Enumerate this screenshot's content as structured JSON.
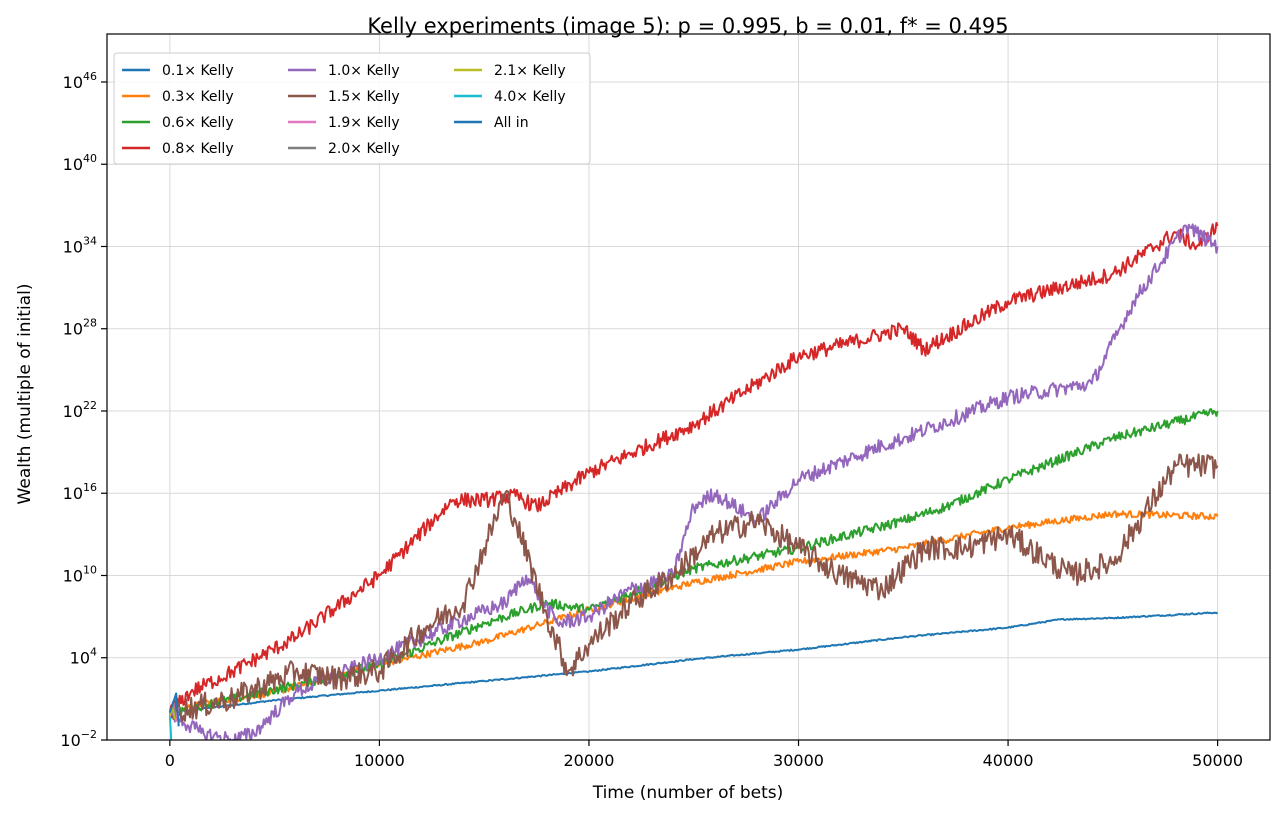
{
  "chart_data": {
    "type": "line",
    "title": "Kelly experiments (image 5): p = 0.995, b = 0.01, f* = 0.495",
    "xlabel": "Time (number of bets)",
    "ylabel": "Wealth (multiple of initial)",
    "xlim": [
      -3000,
      52500
    ],
    "ylim_log10": [
      -2,
      49.5
    ],
    "y_scale": "log",
    "grid": true,
    "legend_placement": "top-left",
    "legend_columns": 3,
    "x_ticks": [
      {
        "value": 0,
        "label": "0"
      },
      {
        "value": 10000,
        "label": "10000"
      },
      {
        "value": 20000,
        "label": "20000"
      },
      {
        "value": 30000,
        "label": "30000"
      },
      {
        "value": 40000,
        "label": "40000"
      },
      {
        "value": 50000,
        "label": "50000"
      }
    ],
    "y_ticks": [
      {
        "exp": -2,
        "base": "10",
        "sup": "−2"
      },
      {
        "exp": 4,
        "base": "10",
        "sup": "4"
      },
      {
        "exp": 10,
        "base": "10",
        "sup": "10"
      },
      {
        "exp": 16,
        "base": "10",
        "sup": "16"
      },
      {
        "exp": 22,
        "base": "10",
        "sup": "22"
      },
      {
        "exp": 28,
        "base": "10",
        "sup": "28"
      },
      {
        "exp": 34,
        "base": "10",
        "sup": "34"
      },
      {
        "exp": 40,
        "base": "10",
        "sup": "40"
      },
      {
        "exp": 46,
        "base": "10",
        "sup": "46"
      }
    ],
    "series": [
      {
        "name": "0.1× Kelly",
        "color": "#1f77b4",
        "jitter": 0.05,
        "x": [
          0,
          5000,
          10000,
          15000,
          20000,
          25000,
          30000,
          35000,
          40000,
          42500,
          45000,
          50000
        ],
        "log10_y": [
          0,
          0.9,
          1.6,
          2.3,
          3.0,
          3.9,
          4.6,
          5.5,
          6.2,
          6.8,
          6.9,
          7.3
        ]
      },
      {
        "name": "0.3× Kelly",
        "color": "#ff7f0e",
        "jitter": 0.25,
        "x": [
          0,
          2000,
          5000,
          10000,
          15000,
          20000,
          25000,
          30000,
          35000,
          40000,
          45000,
          50000
        ],
        "log10_y": [
          0,
          0.8,
          1.5,
          3.5,
          5.2,
          7.5,
          9.5,
          11,
          12,
          13.5,
          14.5,
          14.3
        ]
      },
      {
        "name": "0.6× Kelly",
        "color": "#2ca02c",
        "jitter": 0.35,
        "x": [
          0,
          3000,
          6000,
          10000,
          15000,
          18000,
          20000,
          25000,
          30000,
          35000,
          37000,
          40000,
          45000,
          50000
        ],
        "log10_y": [
          0,
          1,
          2,
          3.5,
          6.5,
          8,
          7.5,
          10.5,
          12,
          14,
          15,
          17,
          20,
          22
        ]
      },
      {
        "name": "0.8× Kelly",
        "color": "#d62728",
        "jitter": 0.55,
        "x": [
          0,
          1000,
          3000,
          6000,
          10000,
          13500,
          15000,
          16500,
          17500,
          20000,
          25000,
          30000,
          35000,
          36000,
          40000,
          45000,
          48000,
          49000,
          50000
        ],
        "log10_y": [
          0,
          1.5,
          3,
          5.5,
          10,
          15.5,
          15.5,
          15.8,
          15,
          17.5,
          21,
          26,
          28,
          26.5,
          30,
          32,
          35,
          34,
          35.5
        ]
      },
      {
        "name": "1.0× Kelly",
        "color": "#9467bd",
        "jitter": 0.55,
        "x": [
          0,
          1500,
          3000,
          4000,
          6000,
          10000,
          14000,
          16000,
          17000,
          17500,
          18500,
          20000,
          22000,
          24000,
          25000,
          26000,
          28000,
          30000,
          34000,
          35000,
          40000,
          44000,
          46000,
          48500,
          49000,
          50000
        ],
        "log10_y": [
          0,
          -1.5,
          -2,
          -1.5,
          1.5,
          4,
          6.8,
          8,
          10,
          8.8,
          6.5,
          7,
          9,
          10,
          15,
          16,
          14,
          17,
          19.5,
          20,
          23,
          24,
          30,
          35.5,
          35,
          34
        ]
      },
      {
        "name": "1.5× Kelly",
        "color": "#8c564b",
        "jitter": 0.9,
        "x": [
          0,
          3000,
          6000,
          8000,
          10000,
          12000,
          14000,
          15000,
          16000,
          16500,
          18000,
          19000,
          20000,
          22000,
          24000,
          26000,
          28000,
          30000,
          32000,
          34000,
          36000,
          38000,
          40000,
          43000,
          45000,
          48000,
          50000
        ],
        "log10_y": [
          0,
          1,
          3,
          2.5,
          3,
          6,
          8,
          12,
          16,
          14,
          7,
          3,
          5,
          8,
          10,
          13,
          14,
          12,
          10,
          9,
          12,
          12,
          13,
          10,
          11,
          18,
          18
        ]
      },
      {
        "name": "1.9× Kelly",
        "color": "#e377c2",
        "jitter": 0,
        "x": [
          0,
          150,
          300,
          420
        ],
        "log10_y": [
          -0.3,
          0.8,
          -0.6,
          0.4
        ]
      },
      {
        "name": "2.0× Kelly",
        "color": "#7f7f7f",
        "jitter": 0,
        "x": [
          0,
          150,
          280
        ],
        "log10_y": [
          -0.2,
          0.5,
          -0.4
        ]
      },
      {
        "name": "2.1× Kelly",
        "color": "#bcbd22",
        "jitter": 0,
        "x": [
          0,
          120,
          240
        ],
        "log10_y": [
          -0.2,
          0.4,
          -0.5
        ]
      },
      {
        "name": "4.0× Kelly",
        "color": "#17becf",
        "jitter": 0,
        "x": [
          0,
          30,
          60,
          90
        ],
        "log10_y": [
          -0.3,
          -1,
          -1.8,
          -3
        ]
      },
      {
        "name": "All in",
        "color": "#1f77b4",
        "jitter": 0,
        "x": [
          0,
          150,
          300,
          350,
          420
        ],
        "log10_y": [
          0,
          0.7,
          1.4,
          0.5,
          -1
        ]
      }
    ]
  }
}
